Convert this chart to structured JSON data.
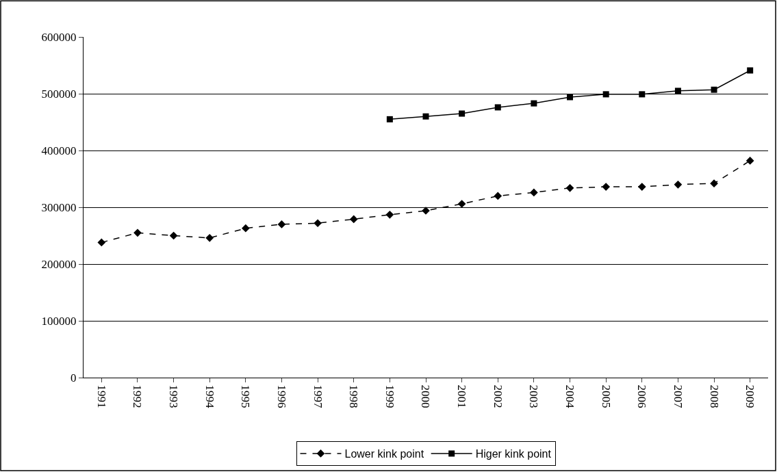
{
  "chart_data": {
    "type": "line",
    "categories": [
      "1991",
      "1992",
      "1993",
      "1994",
      "1995",
      "1996",
      "1997",
      "1998",
      "1999",
      "2000",
      "2001",
      "2002",
      "2003",
      "2004",
      "2005",
      "2006",
      "2007",
      "2008",
      "2009"
    ],
    "series": [
      {
        "name": "Lower kink point",
        "color": "#000000",
        "marker": "diamond",
        "line_style": "dashed",
        "values": [
          238000,
          255000,
          250000,
          246000,
          263000,
          270000,
          272000,
          279000,
          287000,
          294000,
          306000,
          320000,
          326000,
          334000,
          336000,
          336000,
          340000,
          342000,
          382000
        ]
      },
      {
        "name": "Higer kink point",
        "color": "#000000",
        "marker": "square",
        "line_style": "solid",
        "values": [
          null,
          null,
          null,
          null,
          null,
          null,
          null,
          null,
          455000,
          460000,
          465000,
          476000,
          483000,
          494000,
          499000,
          499000,
          505000,
          507000,
          541000
        ]
      }
    ],
    "ylim": [
      0,
      600000
    ],
    "yticks": [
      0,
      100000,
      200000,
      300000,
      400000,
      500000,
      600000
    ],
    "grid": "y",
    "legend": "bottom"
  }
}
